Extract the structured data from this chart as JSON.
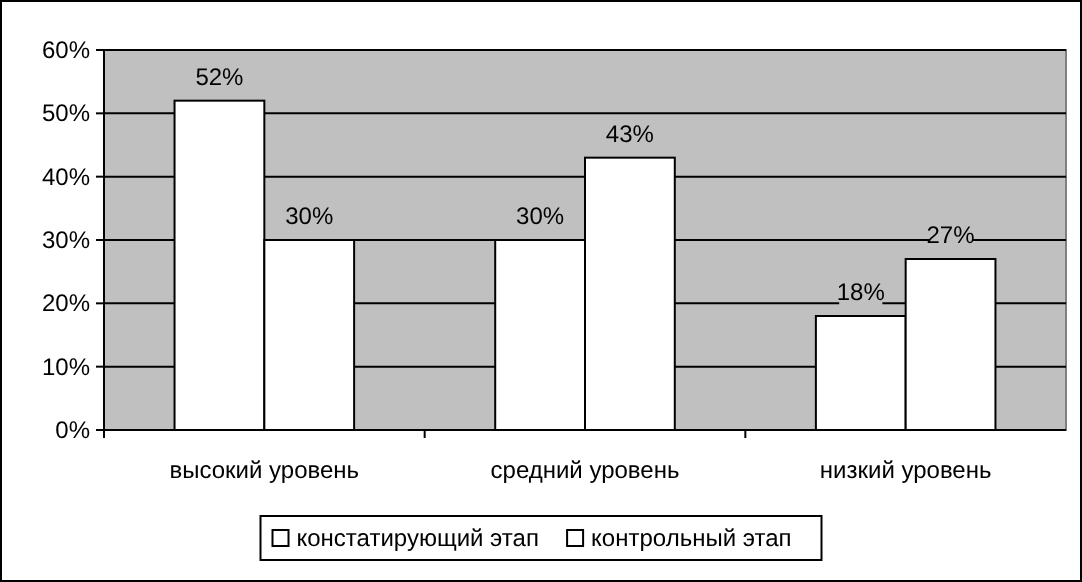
{
  "chart_data": {
    "type": "bar",
    "categories": [
      "высокий уровень",
      "средний уровень",
      "низкий уровень"
    ],
    "series": [
      {
        "name": "констатирующий этап",
        "color": "#ffffff",
        "values": [
          52,
          30,
          18
        ],
        "value_labels": [
          "52%",
          "30%",
          "18%"
        ]
      },
      {
        "name": "контрольный этап",
        "color": "#ffffff",
        "values": [
          30,
          43,
          27
        ],
        "value_labels": [
          "30%",
          "43%",
          "27%"
        ]
      }
    ],
    "ylim": [
      0,
      60
    ],
    "yticks": [
      {
        "value": 0,
        "label": "0%"
      },
      {
        "value": 10,
        "label": "10%"
      },
      {
        "value": 20,
        "label": "20%"
      },
      {
        "value": 30,
        "label": "30%"
      },
      {
        "value": 40,
        "label": "40%"
      },
      {
        "value": 50,
        "label": "50%"
      },
      {
        "value": 60,
        "label": "60%"
      }
    ],
    "grid": "y",
    "legend": "bottom"
  }
}
